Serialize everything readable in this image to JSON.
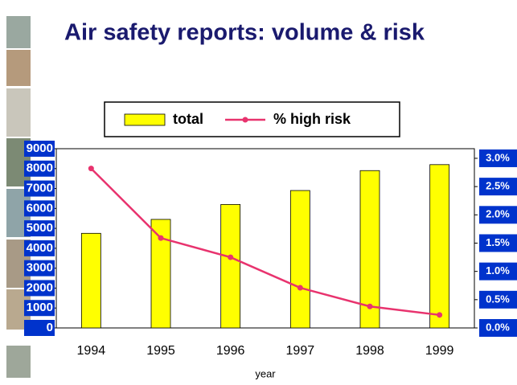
{
  "chart_data": {
    "type": "bar-line",
    "title": "Air safety reports: volume & risk",
    "x_label": "year",
    "categories": [
      "1994",
      "1995",
      "1996",
      "1997",
      "1998",
      "1999"
    ],
    "series": [
      {
        "name": "total",
        "type": "bar",
        "color": "#ffff00",
        "values": [
          4750,
          5450,
          6200,
          6900,
          7900,
          8200
        ]
      },
      {
        "name": "% high risk",
        "type": "line",
        "axis": "y2",
        "color": "#e8336e",
        "values": [
          2.82,
          1.59,
          1.25,
          0.71,
          0.38,
          0.23
        ]
      }
    ],
    "ylim": [
      0,
      9000
    ],
    "yticks": [
      0,
      1000,
      2000,
      3000,
      4000,
      5000,
      6000,
      7000,
      8000,
      9000
    ],
    "y2lim": [
      0,
      3.17
    ],
    "y2ticks": [
      {
        "value": 0,
        "label": "0.0%"
      },
      {
        "value": 0.5,
        "label": "0.5%"
      },
      {
        "value": 1,
        "label": "1.0%"
      },
      {
        "value": 1.5,
        "label": "1.5%"
      },
      {
        "value": 2,
        "label": "2.0%"
      },
      {
        "value": 2.5,
        "label": "2.5%"
      },
      {
        "value": 3,
        "label": "3.0%"
      }
    ],
    "legend": "top"
  }
}
